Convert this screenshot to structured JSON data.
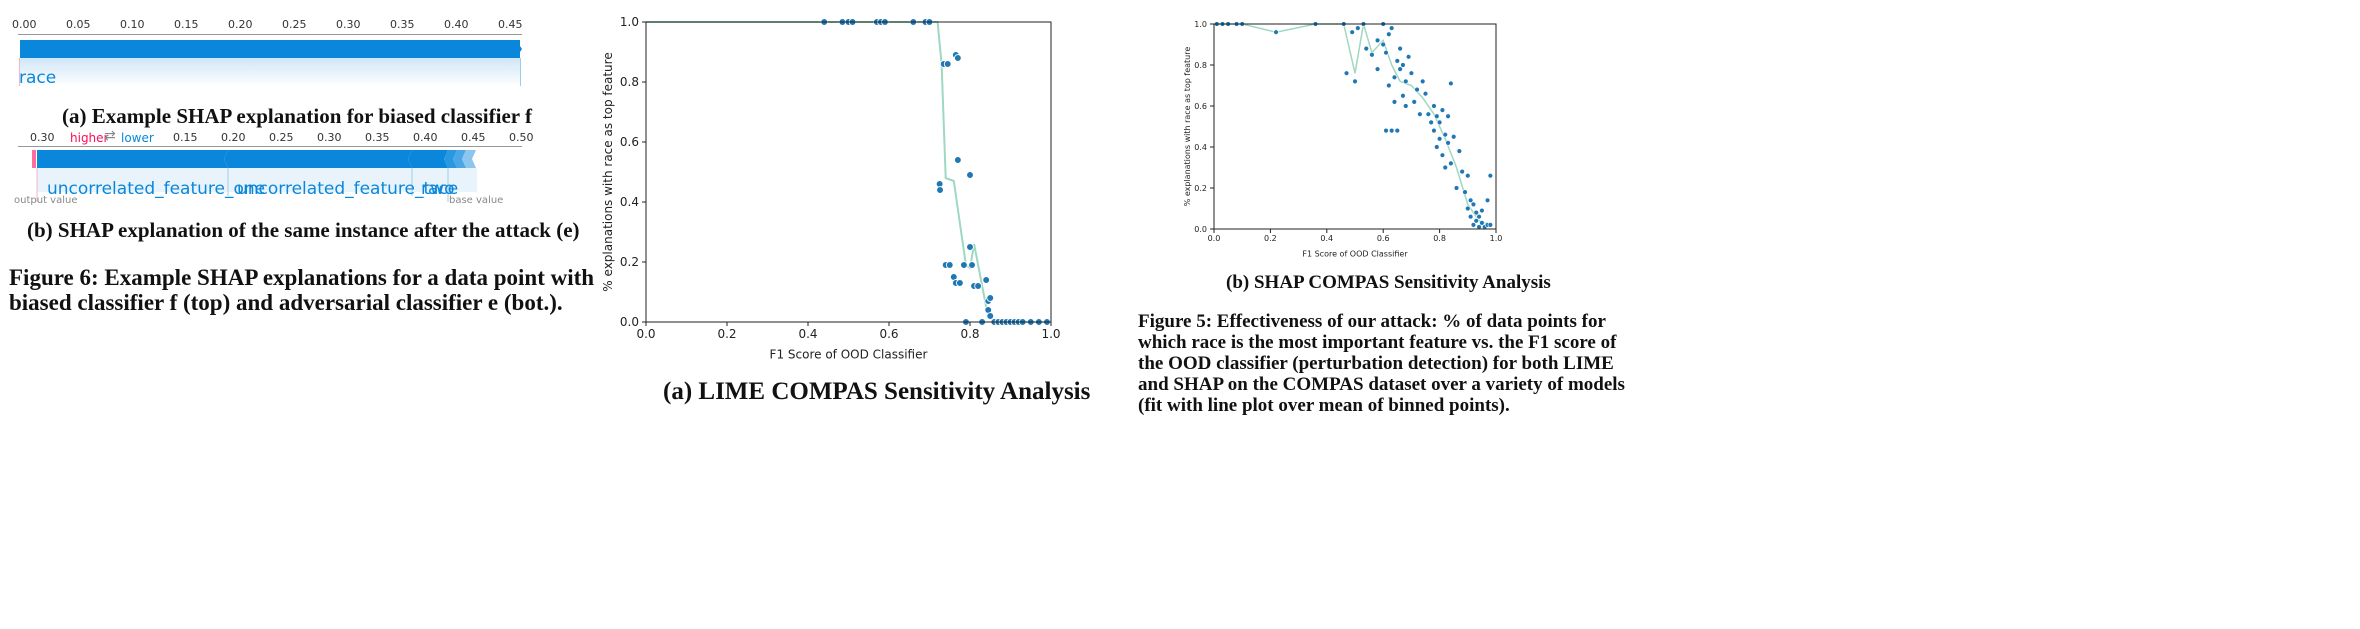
{
  "shap_a": {
    "ticks": [
      "0.00",
      "0.05",
      "0.10",
      "0.15",
      "0.20",
      "0.25",
      "0.30",
      "0.35",
      "0.40",
      "0.45"
    ],
    "feature_label": "race",
    "caption": "(a) Example SHAP explanation for biased classifier f"
  },
  "shap_b": {
    "ticks": [
      "0.30",
      "0.15",
      "0.20",
      "0.25",
      "0.30",
      "0.35",
      "0.40",
      "0.45",
      "0.50"
    ],
    "higher_label": "higher",
    "arrow_symbol": "⇄",
    "lower_label": "lower",
    "features": [
      "uncorrelated_feature_one",
      "uncorrelated_feature_two",
      "race"
    ],
    "output_value_label": "output value",
    "base_value_label": "base value",
    "caption": "(b) SHAP explanation of the same instance after the attack (e)"
  },
  "figure6_caption": {
    "line1": "Figure 6: Example SHAP explanations for a data point with",
    "line2": "biased classifier f (top) and adversarial classifier e (bot.)."
  },
  "lime_plot": {
    "caption": "(a) LIME COMPAS Sensitivity Analysis"
  },
  "shap_plot": {
    "caption": "(b) SHAP COMPAS Sensitivity Analysis"
  },
  "figure5_caption": {
    "lines": [
      "Figure 5: Effectiveness of our attack: % of data points for",
      "which race is the most important feature vs. the F1 score of",
      "the OOD classifier (perturbation detection) for both LIME",
      "and SHAP on the COMPAS dataset over a variety of models",
      "(fit with line plot over mean of binned points)."
    ]
  },
  "colors": {
    "shap_blue": "#0a87da",
    "shap_pink": "#ff0d57",
    "scatter_blue": "#1f77b4",
    "fit_line_green": "#9fd8c0"
  },
  "chart_data": [
    {
      "type": "scatter",
      "xlabel": "F1 Score of OOD Classifier",
      "ylabel": "% explanations with race as top feature",
      "xlim": [
        0.0,
        1.0
      ],
      "ylim": [
        0.0,
        1.0
      ],
      "xticks": [
        "0.0",
        "0.2",
        "0.4",
        "0.6",
        "0.8",
        "1.0"
      ],
      "yticks": [
        "0.0",
        "0.2",
        "0.4",
        "0.6",
        "0.8",
        "1.0"
      ],
      "grid": false,
      "points": [
        [
          0.44,
          1.0
        ],
        [
          0.485,
          1.0
        ],
        [
          0.5,
          1.0
        ],
        [
          0.51,
          1.0
        ],
        [
          0.57,
          1.0
        ],
        [
          0.58,
          1.0
        ],
        [
          0.59,
          1.0
        ],
        [
          0.66,
          1.0
        ],
        [
          0.69,
          1.0
        ],
        [
          0.7,
          1.0
        ],
        [
          0.725,
          0.46
        ],
        [
          0.726,
          0.44
        ],
        [
          0.735,
          0.86
        ],
        [
          0.745,
          0.86
        ],
        [
          0.74,
          0.19
        ],
        [
          0.75,
          0.19
        ],
        [
          0.76,
          0.15
        ],
        [
          0.765,
          0.89
        ],
        [
          0.77,
          0.88
        ],
        [
          0.77,
          0.54
        ],
        [
          0.765,
          0.13
        ],
        [
          0.775,
          0.13
        ],
        [
          0.785,
          0.19
        ],
        [
          0.79,
          0.0
        ],
        [
          0.8,
          0.49
        ],
        [
          0.8,
          0.25
        ],
        [
          0.805,
          0.19
        ],
        [
          0.81,
          0.12
        ],
        [
          0.82,
          0.12
        ],
        [
          0.83,
          0.0
        ],
        [
          0.84,
          0.14
        ],
        [
          0.845,
          0.07
        ],
        [
          0.85,
          0.08
        ],
        [
          0.845,
          0.04
        ],
        [
          0.85,
          0.02
        ],
        [
          0.86,
          0.0
        ],
        [
          0.87,
          0.0
        ],
        [
          0.88,
          0.0
        ],
        [
          0.89,
          0.0
        ],
        [
          0.9,
          0.0
        ],
        [
          0.91,
          0.0
        ],
        [
          0.92,
          0.0
        ],
        [
          0.93,
          0.0
        ],
        [
          0.95,
          0.0
        ],
        [
          0.97,
          0.0
        ],
        [
          0.99,
          0.0
        ]
      ],
      "fit_line": [
        [
          0.0,
          1.0
        ],
        [
          0.72,
          1.0
        ],
        [
          0.73,
          0.86
        ],
        [
          0.74,
          0.48
        ],
        [
          0.76,
          0.47
        ],
        [
          0.79,
          0.19
        ],
        [
          0.8,
          0.18
        ],
        [
          0.81,
          0.26
        ],
        [
          0.84,
          0.05
        ],
        [
          0.86,
          0.0
        ],
        [
          1.0,
          0.0
        ]
      ]
    },
    {
      "type": "scatter",
      "xlabel": "F1 Score of OOD Classifier",
      "ylabel": "% explanations with race as top feature",
      "xlim": [
        0.0,
        1.0
      ],
      "ylim": [
        0.0,
        1.0
      ],
      "xticks": [
        "0.0",
        "0.2",
        "0.4",
        "0.6",
        "0.8",
        "1.0"
      ],
      "yticks": [
        "0.0",
        "0.2",
        "0.4",
        "0.6",
        "0.8",
        "1.0"
      ],
      "grid": false,
      "points": [
        [
          0.01,
          1.0
        ],
        [
          0.03,
          1.0
        ],
        [
          0.05,
          1.0
        ],
        [
          0.08,
          1.0
        ],
        [
          0.1,
          1.0
        ],
        [
          0.22,
          0.96
        ],
        [
          0.36,
          1.0
        ],
        [
          0.46,
          1.0
        ],
        [
          0.47,
          0.76
        ],
        [
          0.49,
          0.96
        ],
        [
          0.5,
          0.72
        ],
        [
          0.51,
          0.98
        ],
        [
          0.53,
          1.0
        ],
        [
          0.54,
          0.88
        ],
        [
          0.56,
          0.85
        ],
        [
          0.58,
          0.92
        ],
        [
          0.58,
          0.78
        ],
        [
          0.6,
          1.0
        ],
        [
          0.6,
          0.9
        ],
        [
          0.61,
          0.48
        ],
        [
          0.61,
          0.86
        ],
        [
          0.62,
          0.95
        ],
        [
          0.62,
          0.7
        ],
        [
          0.63,
          0.48
        ],
        [
          0.63,
          0.98
        ],
        [
          0.64,
          0.74
        ],
        [
          0.64,
          0.62
        ],
        [
          0.65,
          0.48
        ],
        [
          0.65,
          0.82
        ],
        [
          0.66,
          0.88
        ],
        [
          0.66,
          0.78
        ],
        [
          0.67,
          0.8
        ],
        [
          0.67,
          0.65
        ],
        [
          0.68,
          0.72
        ],
        [
          0.68,
          0.6
        ],
        [
          0.69,
          0.84
        ],
        [
          0.7,
          0.76
        ],
        [
          0.71,
          0.62
        ],
        [
          0.72,
          0.68
        ],
        [
          0.73,
          0.56
        ],
        [
          0.74,
          0.72
        ],
        [
          0.75,
          0.66
        ],
        [
          0.76,
          0.56
        ],
        [
          0.77,
          0.52
        ],
        [
          0.78,
          0.6
        ],
        [
          0.78,
          0.48
        ],
        [
          0.79,
          0.55
        ],
        [
          0.79,
          0.4
        ],
        [
          0.8,
          0.52
        ],
        [
          0.8,
          0.44
        ],
        [
          0.81,
          0.58
        ],
        [
          0.81,
          0.36
        ],
        [
          0.82,
          0.46
        ],
        [
          0.82,
          0.3
        ],
        [
          0.83,
          0.55
        ],
        [
          0.83,
          0.42
        ],
        [
          0.84,
          0.71
        ],
        [
          0.84,
          0.32
        ],
        [
          0.85,
          0.45
        ],
        [
          0.86,
          0.2
        ],
        [
          0.87,
          0.38
        ],
        [
          0.88,
          0.28
        ],
        [
          0.89,
          0.18
        ],
        [
          0.9,
          0.26
        ],
        [
          0.9,
          0.1
        ],
        [
          0.91,
          0.06
        ],
        [
          0.91,
          0.14
        ],
        [
          0.92,
          0.02
        ],
        [
          0.92,
          0.12
        ],
        [
          0.93,
          0.04
        ],
        [
          0.93,
          0.08
        ],
        [
          0.94,
          0.06
        ],
        [
          0.94,
          0.01
        ],
        [
          0.95,
          0.03
        ],
        [
          0.95,
          0.09
        ],
        [
          0.96,
          0.01
        ],
        [
          0.97,
          0.02
        ],
        [
          0.97,
          0.14
        ],
        [
          0.98,
          0.02
        ],
        [
          0.98,
          0.26
        ]
      ],
      "fit_line": [
        [
          0.0,
          1.0
        ],
        [
          0.1,
          1.0
        ],
        [
          0.22,
          0.96
        ],
        [
          0.36,
          1.0
        ],
        [
          0.46,
          1.0
        ],
        [
          0.5,
          0.76
        ],
        [
          0.53,
          1.0
        ],
        [
          0.56,
          0.86
        ],
        [
          0.6,
          0.92
        ],
        [
          0.63,
          0.8
        ],
        [
          0.66,
          0.72
        ],
        [
          0.7,
          0.7
        ],
        [
          0.74,
          0.64
        ],
        [
          0.78,
          0.56
        ],
        [
          0.82,
          0.44
        ],
        [
          0.86,
          0.3
        ],
        [
          0.9,
          0.12
        ],
        [
          0.94,
          0.04
        ],
        [
          0.98,
          0.02
        ]
      ]
    }
  ]
}
